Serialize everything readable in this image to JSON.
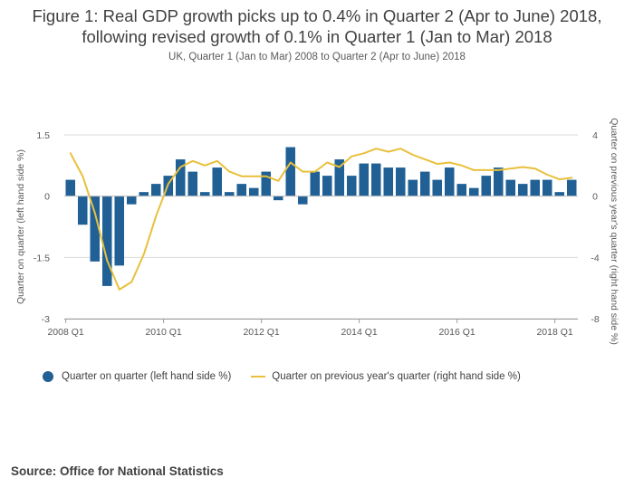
{
  "header": {
    "title_line1": "Figure 1: Real GDP growth picks up to 0.4% in Quarter 2 (Apr to June) 2018,",
    "title_line2": "following revised growth of 0.1% in Quarter 1 (Jan to Mar) 2018",
    "subtitle": "UK, Quarter 1 (Jan to Mar) 2008 to Quarter 2 (Apr to June) 2018"
  },
  "footer": {
    "source": "Source: Office for National Statistics"
  },
  "colors": {
    "bars": "#206095",
    "line": "#e9c03b",
    "grid": "#d9d9d9",
    "axis": "#595959"
  },
  "chart_data": {
    "type": "bar",
    "title": "Figure 1: Real GDP growth picks up to 0.4% in Quarter 2 (Apr to June) 2018, following revised growth of 0.1% in Quarter 1 (Jan to Mar) 2018",
    "subtitle": "UK, Quarter 1 (Jan to Mar) 2008 to Quarter 2 (Apr to June) 2018",
    "ylabel_left": "Quarter on quarter (left hand side %)",
    "ylabel_right": "Quarter on previous year's quarter (right hand side %)",
    "ylim_left": [
      -3,
      1.5
    ],
    "ylim_right": [
      -8,
      4
    ],
    "yticks_left": [
      "1.5",
      "0",
      "-1.5",
      "-3"
    ],
    "yticks_right": [
      "4",
      "0",
      "-4",
      "-8"
    ],
    "xtick_labels": [
      "2008 Q1",
      "2010 Q1",
      "2012 Q1",
      "2014 Q1",
      "2016 Q1",
      "2018 Q1"
    ],
    "grid": true,
    "legend_position": "bottom-left",
    "categories": [
      "2008 Q1",
      "2008 Q2",
      "2008 Q3",
      "2008 Q4",
      "2009 Q1",
      "2009 Q2",
      "2009 Q3",
      "2009 Q4",
      "2010 Q1",
      "2010 Q2",
      "2010 Q3",
      "2010 Q4",
      "2011 Q1",
      "2011 Q2",
      "2011 Q3",
      "2011 Q4",
      "2012 Q1",
      "2012 Q2",
      "2012 Q3",
      "2012 Q4",
      "2013 Q1",
      "2013 Q2",
      "2013 Q3",
      "2013 Q4",
      "2014 Q1",
      "2014 Q2",
      "2014 Q3",
      "2014 Q4",
      "2015 Q1",
      "2015 Q2",
      "2015 Q3",
      "2015 Q4",
      "2016 Q1",
      "2016 Q2",
      "2016 Q3",
      "2016 Q4",
      "2017 Q1",
      "2017 Q2",
      "2017 Q3",
      "2017 Q4",
      "2018 Q1",
      "2018 Q2"
    ],
    "series": [
      {
        "name": "Quarter on quarter (left hand side %)",
        "kind": "bar",
        "axis": "left",
        "values": [
          0.4,
          -0.7,
          -1.6,
          -2.2,
          -1.7,
          -0.2,
          0.1,
          0.3,
          0.5,
          0.9,
          0.6,
          0.1,
          0.7,
          0.1,
          0.3,
          0.2,
          0.6,
          -0.1,
          1.2,
          -0.2,
          0.6,
          0.5,
          0.9,
          0.5,
          0.8,
          0.8,
          0.7,
          0.7,
          0.4,
          0.6,
          0.4,
          0.7,
          0.3,
          0.2,
          0.5,
          0.7,
          0.4,
          0.3,
          0.4,
          0.4,
          0.1,
          0.4
        ]
      },
      {
        "name": "Quarter on previous year's quarter (right hand side %)",
        "kind": "line",
        "axis": "right",
        "values": [
          2.8,
          1.3,
          -1.1,
          -4.2,
          -6.1,
          -5.6,
          -3.8,
          -1.3,
          0.8,
          1.9,
          2.3,
          2.0,
          2.3,
          1.6,
          1.3,
          1.3,
          1.3,
          1.0,
          2.2,
          1.6,
          1.6,
          2.2,
          1.9,
          2.6,
          2.8,
          3.1,
          2.9,
          3.1,
          2.7,
          2.4,
          2.1,
          2.2,
          2.0,
          1.7,
          1.7,
          1.7,
          1.8,
          1.9,
          1.8,
          1.4,
          1.1,
          1.2
        ]
      }
    ]
  }
}
